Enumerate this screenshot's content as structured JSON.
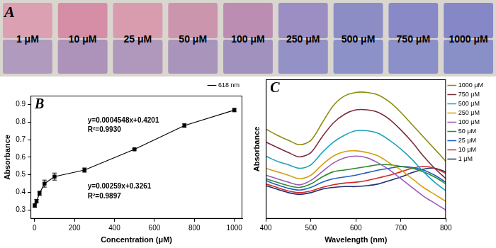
{
  "photo": {
    "panel": "A",
    "labels": [
      "1 μM",
      "10 μM",
      "25 μM",
      "50 μM",
      "100 μM",
      "250 μM",
      "500 μM",
      "750 μM",
      "1000 μM"
    ],
    "colors": [
      "#dba0b2",
      "#d58ea6",
      "#d99cae",
      "#cc95ae",
      "#bb8db2",
      "#9c8dc2",
      "#8d8dc6",
      "#8989c8",
      "#8587c6"
    ]
  },
  "chart_data": [
    {
      "type": "scatter",
      "panel": "B",
      "x_label": "Concentration (μM)",
      "y_label": "Absorbance",
      "x": [
        1,
        10,
        25,
        50,
        100,
        250,
        500,
        750,
        1000
      ],
      "series": [
        {
          "name": "618 nm",
          "color": "#000000",
          "marker": "square",
          "line_style": "solid",
          "values": [
            0.325,
            0.35,
            0.395,
            0.45,
            0.49,
            0.527,
            0.645,
            0.78,
            0.868
          ],
          "errors": [
            0.01,
            0.01,
            0.012,
            0.02,
            0.02,
            0.012,
            0.005,
            0.01,
            0.01
          ]
        }
      ],
      "annotations": [
        "y=0.0004548x+0.4201",
        "R²=0.9930",
        "y=0.00259x+0.3261",
        "R²=0.9897"
      ],
      "xlim": [
        -20,
        1040
      ],
      "xticks": [
        0,
        200,
        400,
        600,
        800,
        1000
      ],
      "ylim": [
        0.25,
        0.95
      ],
      "yticks": [
        0.3,
        0.4,
        0.5,
        0.6,
        0.7,
        0.8,
        0.9
      ],
      "grid": false,
      "legend": "upper right"
    },
    {
      "type": "line",
      "panel": "C",
      "x_label": "Wavelength (nm)",
      "y_label": "Absorbance",
      "x": [
        400,
        425,
        450,
        475,
        500,
        525,
        550,
        575,
        600,
        625,
        650,
        675,
        700,
        725,
        750,
        775,
        800
      ],
      "series": [
        {
          "name": "1000 μM",
          "color": "#8c8c10",
          "values": [
            0.665,
            0.63,
            0.6,
            0.575,
            0.6,
            0.7,
            0.8,
            0.855,
            0.875,
            0.875,
            0.86,
            0.82,
            0.76,
            0.69,
            0.62,
            0.55,
            0.48
          ]
        },
        {
          "name": "750 μM",
          "color": "#7b2d3b",
          "values": [
            0.59,
            0.56,
            0.53,
            0.505,
            0.53,
            0.62,
            0.7,
            0.75,
            0.775,
            0.775,
            0.76,
            0.72,
            0.66,
            0.59,
            0.51,
            0.44,
            0.38
          ]
        },
        {
          "name": "500 μM",
          "color": "#1ca3b8",
          "values": [
            0.51,
            0.48,
            0.46,
            0.44,
            0.46,
            0.53,
            0.59,
            0.63,
            0.655,
            0.655,
            0.64,
            0.6,
            0.55,
            0.49,
            0.42,
            0.36,
            0.31
          ]
        },
        {
          "name": "250 μM",
          "color": "#d4a017",
          "values": [
            0.44,
            0.42,
            0.4,
            0.38,
            0.4,
            0.46,
            0.51,
            0.535,
            0.54,
            0.53,
            0.51,
            0.47,
            0.43,
            0.38,
            0.33,
            0.29,
            0.25
          ]
        },
        {
          "name": "100 μM",
          "color": "#9b59b6",
          "values": [
            0.4,
            0.38,
            0.36,
            0.345,
            0.37,
            0.42,
            0.47,
            0.5,
            0.51,
            0.5,
            0.47,
            0.43,
            0.38,
            0.33,
            0.28,
            0.24,
            0.2
          ]
        },
        {
          "name": "50 μM",
          "color": "#2e8b2e",
          "values": [
            0.38,
            0.36,
            0.34,
            0.33,
            0.35,
            0.39,
            0.42,
            0.43,
            0.44,
            0.45,
            0.46,
            0.46,
            0.45,
            0.44,
            0.42,
            0.39,
            0.35
          ]
        },
        {
          "name": "25 μM",
          "color": "#1f5fbf",
          "values": [
            0.37,
            0.345,
            0.325,
            0.315,
            0.33,
            0.36,
            0.38,
            0.39,
            0.4,
            0.415,
            0.43,
            0.44,
            0.45,
            0.445,
            0.43,
            0.4,
            0.36
          ]
        },
        {
          "name": "10 μM",
          "color": "#d62728",
          "values": [
            0.35,
            0.33,
            0.31,
            0.3,
            0.31,
            0.33,
            0.345,
            0.355,
            0.36,
            0.37,
            0.385,
            0.4,
            0.42,
            0.44,
            0.45,
            0.44,
            0.41
          ]
        },
        {
          "name": "1 μM",
          "color": "#1f2f6f",
          "values": [
            0.34,
            0.32,
            0.3,
            0.29,
            0.3,
            0.32,
            0.33,
            0.335,
            0.335,
            0.34,
            0.35,
            0.37,
            0.39,
            0.415,
            0.435,
            0.44,
            0.42
          ]
        }
      ],
      "marker": "none",
      "line_style": "solid",
      "xlim": [
        400,
        800
      ],
      "xticks": [
        400,
        500,
        600,
        700,
        800
      ],
      "ylim": [
        0.15,
        0.95
      ],
      "yticks": [],
      "tick_labels": "x",
      "grid": false,
      "legend": "right"
    }
  ]
}
